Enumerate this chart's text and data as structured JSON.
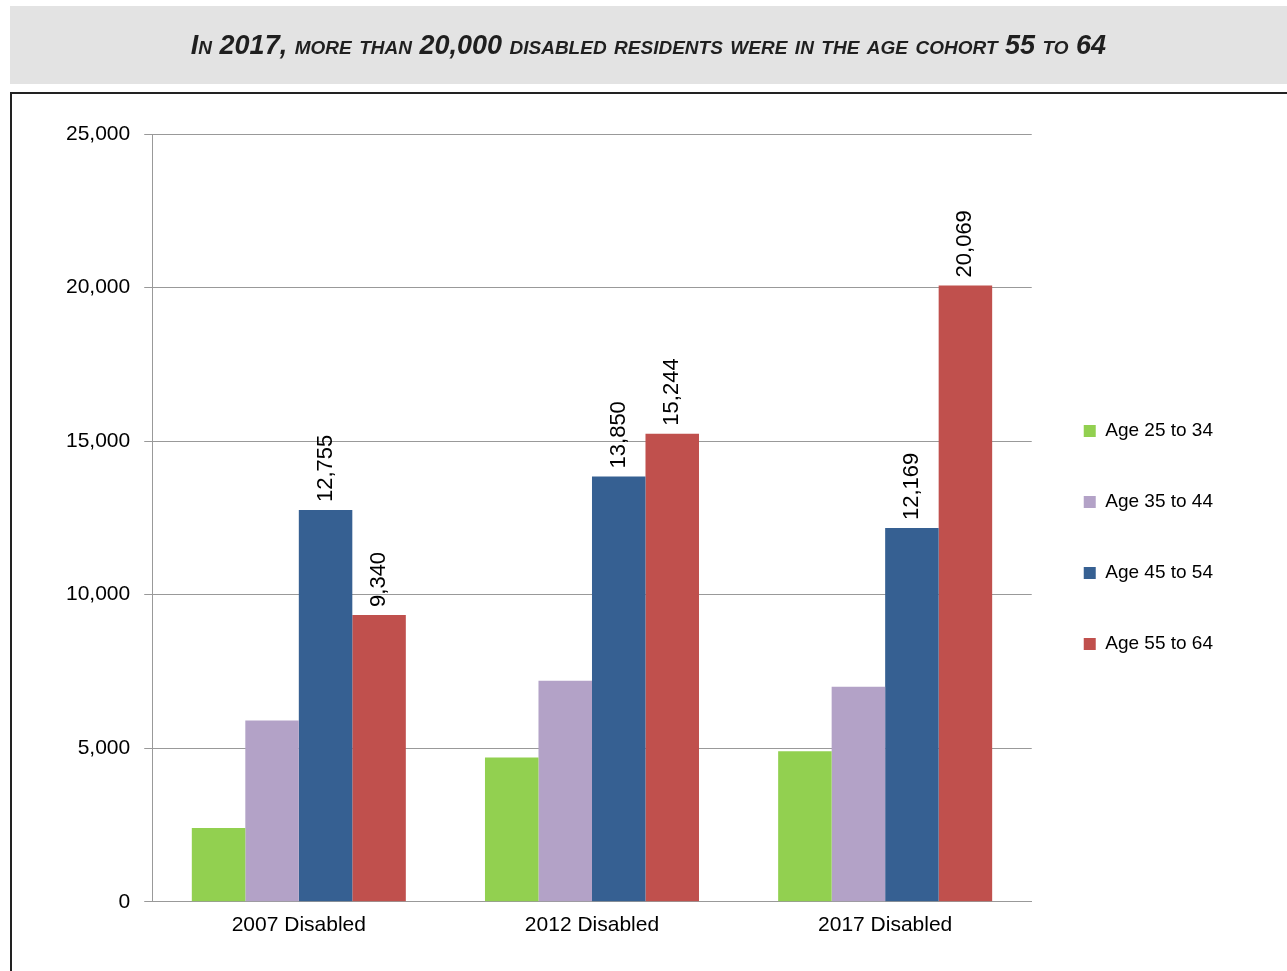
{
  "chart_data": {
    "type": "bar",
    "title": "In 2017, more than 20,000 disabled residents were in the age cohort 55 to 64",
    "categories": [
      "2007 Disabled",
      "2012 Disabled",
      "2017 Disabled"
    ],
    "series": [
      {
        "name": "Age 25 to 34",
        "color": "#92d050",
        "values": [
          2400,
          4700,
          4900
        ]
      },
      {
        "name": "Age 35 to 44",
        "color": "#b3a2c7",
        "values": [
          5900,
          7200,
          7000
        ]
      },
      {
        "name": "Age 45 to 54",
        "color": "#366092",
        "values": [
          12755,
          13850,
          12169
        ],
        "value_labels": [
          "12,755",
          "13,850",
          "12,169"
        ]
      },
      {
        "name": "Age 55 to 64",
        "color": "#c0504d",
        "values": [
          9340,
          15244,
          20069
        ],
        "value_labels": [
          "9,340",
          "15,244",
          "20,069"
        ]
      }
    ],
    "ylim": [
      0,
      25000
    ],
    "yticks": [
      0,
      {
        "value": 5000,
        "label": "5,000"
      },
      {
        "value": 10000,
        "label": "10,000"
      },
      {
        "value": 15000,
        "label": "15,000"
      },
      {
        "value": 20000,
        "label": "20,000"
      },
      {
        "value": 25000,
        "label": "25,000"
      }
    ],
    "grid": "y",
    "legend": "right"
  }
}
